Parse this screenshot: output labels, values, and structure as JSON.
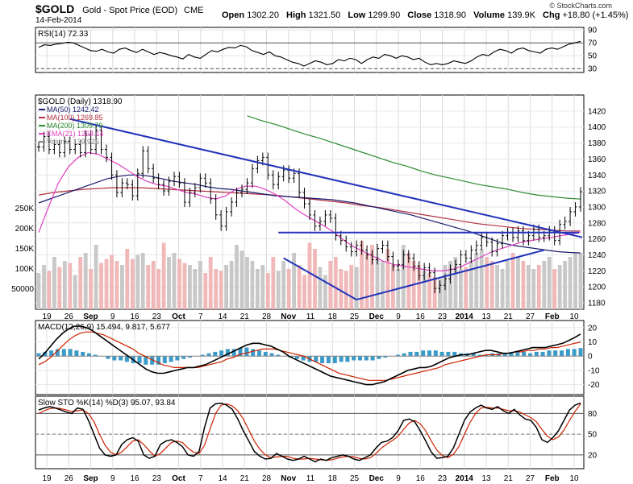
{
  "header": {
    "symbol": "$GOLD",
    "name": "Gold - Spot Price (EOD)",
    "exchange": "CME",
    "date": "14-Feb-2014",
    "brand": "© StockCharts.com",
    "open_label": "Open",
    "open": "1302.20",
    "high_label": "High",
    "high": "1321.50",
    "low_label": "Low",
    "low": "1299.90",
    "close_label": "Close",
    "close": "1318.90",
    "volume_label": "Volume",
    "volume": "139.9K",
    "chg_label": "Chg",
    "chg": "+18.80 (+1.45%)"
  },
  "colors": {
    "ma50": "#1a1a6e",
    "ma100": "#b03040",
    "ma200": "#2e8b2e",
    "ema21": "#e040c0",
    "trendline": "#2233bb",
    "volume_up": "#c8c8c8",
    "volume_down": "#f0b8b8",
    "macd_line": "#000000",
    "signal_line": "#cc2200",
    "histogram": "#3a9ac8",
    "stoch_k": "#000000",
    "stoch_d": "#cc2200"
  },
  "chart_data": [
    {
      "type": "line",
      "panel": "rsi",
      "title": "RSI(14) 72.33",
      "yticks": [
        30,
        50,
        70,
        90
      ],
      "reference_lines": [
        30,
        70
      ],
      "ylim": [
        24,
        94
      ],
      "series": [
        {
          "name": "RSI(14)",
          "values": [
            63,
            67,
            66,
            68,
            69,
            71,
            70,
            66,
            62,
            58,
            57,
            60,
            56,
            54,
            60,
            62,
            58,
            55,
            60,
            56,
            52,
            55,
            53,
            50,
            48,
            45,
            52,
            48,
            46,
            52,
            58,
            56,
            60,
            63,
            62,
            66,
            64,
            58,
            55,
            52,
            56,
            50,
            48,
            44,
            40,
            38,
            34,
            38,
            42,
            40,
            36,
            38,
            44,
            42,
            46,
            44,
            38,
            44,
            48,
            46,
            52,
            50,
            46,
            50,
            48,
            44,
            46,
            40,
            36,
            38,
            36,
            38,
            42,
            40,
            38,
            42,
            48,
            52,
            50,
            56,
            60,
            58,
            54,
            60,
            62,
            58,
            56,
            54,
            60,
            62,
            60,
            64,
            68,
            70,
            72.33
          ]
        }
      ]
    },
    {
      "type": "line",
      "panel": "price",
      "title": "$GOLD (Daily) 1318.90",
      "yticks": [
        1180,
        1200,
        1220,
        1240,
        1260,
        1280,
        1300,
        1320,
        1340,
        1360,
        1380,
        1400,
        1420
      ],
      "ylim": [
        1172,
        1440
      ],
      "volume_yticks": [
        "50000",
        "100K",
        "150K",
        "200K",
        "250K"
      ],
      "legend": [
        {
          "name": "MA(50) 1242.42"
        },
        {
          "name": "MA(100) 1269.85"
        },
        {
          "name": "MA(200) 1309.79"
        },
        {
          "name": "EMA(21) 1268.14"
        },
        {
          "name": "Volume 139,926"
        }
      ],
      "close": [
        1375,
        1388,
        1372,
        1378,
        1368,
        1382,
        1372,
        1378,
        1368,
        1390,
        1372,
        1396,
        1372,
        1362,
        1340,
        1318,
        1330,
        1328,
        1314,
        1342,
        1370,
        1348,
        1336,
        1328,
        1320,
        1332,
        1338,
        1330,
        1306,
        1318,
        1324,
        1336,
        1330,
        1310,
        1290,
        1276,
        1294,
        1306,
        1318,
        1322,
        1330,
        1348,
        1358,
        1362,
        1340,
        1328,
        1338,
        1346,
        1336,
        1342,
        1318,
        1304,
        1290,
        1276,
        1282,
        1290,
        1286,
        1264,
        1258,
        1250,
        1244,
        1252,
        1246,
        1240,
        1234,
        1248,
        1252,
        1238,
        1226,
        1228,
        1240,
        1236,
        1226,
        1214,
        1224,
        1218,
        1198,
        1202,
        1210,
        1222,
        1228,
        1240,
        1236,
        1246,
        1252,
        1262,
        1256,
        1244,
        1254,
        1264,
        1268,
        1262,
        1270,
        1258,
        1264,
        1272,
        1262,
        1264,
        1270,
        1258,
        1278,
        1282,
        1294,
        1300,
        1318.9
      ],
      "series": [
        {
          "name": "MA(50)",
          "values": [
            1305,
            1310,
            1315,
            1320,
            1325,
            1330,
            1335,
            1338,
            1340,
            1340,
            1338,
            1335,
            1332,
            1330,
            1328,
            1325,
            1323,
            1322,
            1320,
            1318,
            1316,
            1314,
            1313,
            1312,
            1311,
            1310,
            1309,
            1307,
            1305,
            1302,
            1299,
            1296,
            1293,
            1290,
            1286,
            1282,
            1278,
            1274,
            1270,
            1265,
            1260,
            1255,
            1252,
            1250,
            1248,
            1246,
            1244,
            1243,
            1242.42
          ]
        },
        {
          "name": "MA(100)",
          "values": [
            1315,
            1318,
            1320,
            1322,
            1323,
            1324,
            1324,
            1324,
            1323,
            1322,
            1321,
            1320,
            1319,
            1318,
            1317,
            1316,
            1315,
            1313,
            1311,
            1309,
            1307,
            1305,
            1302,
            1300,
            1297,
            1294,
            1291,
            1288,
            1285,
            1282,
            1279,
            1277,
            1275,
            1273,
            1272,
            1271,
            1270,
            1269.85
          ]
        },
        {
          "name": "MA(200)",
          "values": [
            1414,
            1408,
            1403,
            1397,
            1391,
            1386,
            1380,
            1374,
            1368,
            1362,
            1356,
            1351,
            1345,
            1340,
            1336,
            1332,
            1328,
            1325,
            1322,
            1318,
            1315,
            1313,
            1311,
            1309.79
          ]
        },
        {
          "name": "EMA(21)",
          "values": [
            1268,
            1300,
            1330,
            1350,
            1362,
            1368,
            1366,
            1360,
            1354,
            1346,
            1338,
            1332,
            1328,
            1326,
            1322,
            1318,
            1316,
            1312,
            1310,
            1314,
            1322,
            1326,
            1326,
            1322,
            1316,
            1308,
            1298,
            1290,
            1283,
            1276,
            1268,
            1258,
            1250,
            1244,
            1238,
            1232,
            1228,
            1226,
            1224,
            1222,
            1220,
            1220,
            1222,
            1226,
            1232,
            1238,
            1244,
            1248,
            1252,
            1256,
            1258,
            1260,
            1262,
            1264,
            1266,
            1268.14
          ]
        }
      ],
      "volume": [
        90,
        110,
        95,
        130,
        105,
        120,
        115,
        85,
        130,
        140,
        100,
        160,
        115,
        125,
        135,
        120,
        110,
        150,
        125,
        135,
        140,
        110,
        120,
        100,
        165,
        130,
        140,
        125,
        115,
        110,
        100,
        120,
        90,
        130,
        100,
        95,
        110,
        120,
        160,
        145,
        130,
        120,
        100,
        110,
        90,
        130,
        95,
        120,
        100,
        140,
        110,
        85,
        165,
        150,
        105,
        85,
        120,
        130,
        100,
        95,
        110,
        105,
        170,
        140,
        160,
        130,
        120,
        150,
        110,
        100,
        160,
        140,
        120,
        110,
        95,
        90,
        80,
        75,
        110,
        120,
        130,
        100,
        105,
        120,
        140,
        150,
        130,
        120,
        110,
        100,
        120,
        140,
        130,
        120,
        110,
        100,
        110,
        120,
        130,
        100,
        110,
        120,
        130,
        140,
        139.9
      ],
      "trendlines": [
        "descending resistance",
        "horizontal support 1268",
        "rising support",
        "lower channel"
      ]
    },
    {
      "type": "line",
      "panel": "macd",
      "title": "MACD(12,26,9) 15.494, 9.817, 5.677",
      "yticks": [
        -20,
        -10,
        0,
        10,
        20
      ],
      "ylim": [
        -27,
        25
      ],
      "series": [
        {
          "name": "MACD(12,26,9)",
          "values": [
            -2,
            2,
            7,
            12,
            16,
            19,
            21,
            21,
            20,
            18,
            15,
            12,
            9,
            6,
            3,
            0,
            -3,
            -6,
            -9,
            -11,
            -12,
            -12,
            -11,
            -10,
            -9,
            -8,
            -8,
            -7,
            -6,
            -4,
            -2,
            0,
            2,
            4,
            6,
            8,
            9,
            9,
            8,
            7,
            5,
            3,
            0,
            -2,
            -4,
            -6,
            -8,
            -10,
            -12,
            -14,
            -15,
            -16,
            -17,
            -18,
            -19,
            -20,
            -20,
            -19,
            -18,
            -16,
            -14,
            -12,
            -10,
            -9,
            -8,
            -8,
            -7,
            -5,
            -3,
            -1,
            0,
            1,
            1,
            2,
            3,
            4,
            4,
            3,
            2,
            2,
            3,
            4,
            5,
            6,
            6,
            6,
            7,
            8,
            9,
            11,
            13,
            15.494
          ]
        },
        {
          "name": "Signal",
          "values": [
            -6,
            -4,
            -1,
            3,
            7,
            11,
            14,
            16,
            17,
            17,
            16,
            15,
            13,
            11,
            9,
            7,
            5,
            2,
            0,
            -2,
            -4,
            -6,
            -7,
            -8,
            -8,
            -8,
            -8,
            -8,
            -7,
            -6,
            -5,
            -4,
            -2,
            -1,
            1,
            2,
            3,
            4,
            5,
            5,
            5,
            4,
            3,
            2,
            1,
            0,
            -2,
            -4,
            -6,
            -8,
            -10,
            -12,
            -13,
            -14,
            -15,
            -16,
            -17,
            -17,
            -17,
            -17,
            -16,
            -15,
            -14,
            -13,
            -12,
            -11,
            -10,
            -9,
            -8,
            -6,
            -5,
            -4,
            -3,
            -2,
            -1,
            0,
            1,
            1,
            1,
            2,
            2,
            3,
            3,
            4,
            4,
            5,
            5,
            6,
            6,
            7,
            8,
            9,
            9.817
          ]
        }
      ],
      "histogram": [
        2,
        3,
        4,
        5,
        5,
        5,
        4,
        3,
        2,
        1,
        0,
        -2,
        -3,
        -3,
        -4,
        -5,
        -5,
        -6,
        -6,
        -6,
        -5,
        -4,
        -3,
        -2,
        -1,
        0,
        1,
        2,
        3,
        4,
        5,
        5,
        6,
        6,
        5,
        4,
        3,
        2,
        1,
        0,
        -1,
        -2,
        -3,
        -4,
        -4,
        -5,
        -5,
        -5,
        -4,
        -4,
        -3,
        -3,
        -3,
        -3,
        -2,
        -1,
        0,
        1,
        2,
        3,
        3,
        4,
        4,
        4,
        3,
        3,
        3,
        2,
        2,
        2,
        1,
        1,
        2,
        2,
        2,
        3,
        3,
        3,
        2,
        3,
        3,
        4,
        4,
        4,
        5,
        5,
        5.677
      ]
    },
    {
      "type": "line",
      "panel": "stochastic",
      "title": "Slow STO %K(14) %D(3) 95.07, 93.84",
      "yticks": [
        20,
        50,
        80
      ],
      "reference_lines": [
        20,
        80
      ],
      "ylim": [
        0,
        105
      ],
      "series": [
        {
          "name": "%K(14)",
          "values": [
            85,
            88,
            90,
            88,
            85,
            82,
            80,
            88,
            86,
            70,
            50,
            30,
            20,
            18,
            20,
            35,
            42,
            45,
            40,
            20,
            15,
            18,
            35,
            40,
            42,
            38,
            32,
            20,
            18,
            25,
            60,
            88,
            94,
            95,
            92,
            86,
            72,
            55,
            40,
            25,
            18,
            14,
            15,
            22,
            18,
            14,
            12,
            14,
            18,
            14,
            10,
            14,
            12,
            16,
            18,
            20,
            18,
            14,
            12,
            16,
            20,
            30,
            38,
            40,
            45,
            55,
            70,
            72,
            68,
            55,
            40,
            24,
            15,
            16,
            18,
            30,
            50,
            70,
            82,
            88,
            92,
            88,
            86,
            90,
            84,
            80,
            86,
            78,
            72,
            70,
            60,
            42,
            38,
            45,
            55,
            70,
            85,
            92,
            95.07
          ]
        },
        {
          "name": "%D(3)",
          "values": [
            80,
            84,
            87,
            88,
            87,
            85,
            83,
            84,
            85,
            80,
            68,
            50,
            34,
            24,
            20,
            24,
            32,
            40,
            42,
            35,
            26,
            18,
            22,
            30,
            38,
            40,
            38,
            30,
            24,
            22,
            34,
            58,
            80,
            92,
            94,
            91,
            84,
            72,
            56,
            40,
            28,
            20,
            16,
            17,
            18,
            18,
            15,
            14,
            14,
            15,
            14,
            13,
            12,
            13,
            15,
            17,
            18,
            17,
            15,
            14,
            16,
            22,
            30,
            36,
            41,
            47,
            57,
            66,
            70,
            65,
            55,
            40,
            27,
            19,
            16,
            21,
            32,
            50,
            67,
            80,
            88,
            89,
            88,
            88,
            86,
            84,
            84,
            82,
            78,
            74,
            68,
            57,
            47,
            42,
            46,
            56,
            70,
            83,
            93.84
          ]
        }
      ]
    },
    {
      "type": "axis",
      "panel": "time",
      "xtick_labels": [
        "19",
        "26",
        "Sep",
        "9",
        "16",
        "23",
        "Oct",
        "7",
        "14",
        "21",
        "28",
        "Nov",
        "11",
        "18",
        "25",
        "Dec",
        "9",
        "16",
        "23",
        "2014",
        "13",
        "21",
        "27",
        "Feb",
        "10"
      ]
    }
  ]
}
